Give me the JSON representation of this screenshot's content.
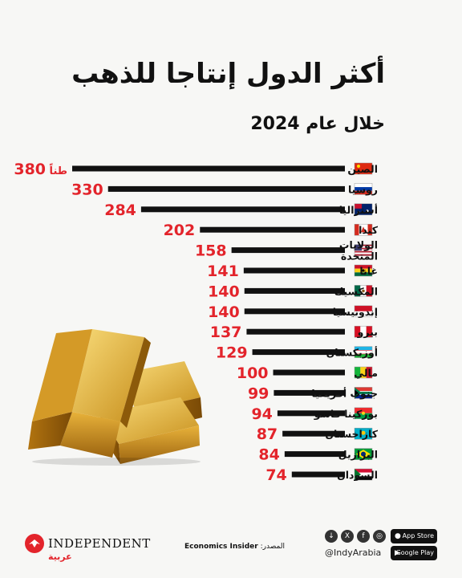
{
  "title": "أكثر الدول إنتاجا للذهب",
  "subtitle": "خلال عام 2024",
  "chart_data": {
    "type": "bar",
    "orientation": "horizontal",
    "value_unit_label": "طناً",
    "categories": [
      "الصين",
      "روسيا",
      "أستراليا",
      "كندا",
      "الولايات المتحدة",
      "غانا",
      "المكسيك",
      "إندونيسيا",
      "بيرو",
      "أوزبكستان",
      "مالي",
      "جنوب أفريقيا",
      "بوركينا فاسو",
      "كازاخستان",
      "البرازيل",
      "السودان"
    ],
    "values": [
      380,
      330,
      284,
      202,
      158,
      141,
      140,
      140,
      137,
      129,
      100,
      99,
      94,
      87,
      84,
      74
    ],
    "flags": [
      "china-flag",
      "russia-flag",
      "australia-flag",
      "canada-flag",
      "usa-flag",
      "ghana-flag",
      "mexico-flag",
      "indonesia-flag",
      "peru-flag",
      "uzbekistan-flag",
      "mali-flag",
      "south-africa-flag",
      "burkina-faso-flag",
      "kazakhstan-flag",
      "brazil-flag",
      "sudan-flag"
    ],
    "colors": {
      "bar": "#111111",
      "value": "#e3242b"
    }
  },
  "footer": {
    "brand": "INDEPENDENT",
    "brand_arabic": "عربية",
    "source_label": "المصدر:",
    "source": "Economics Insider",
    "handle": "@IndyArabia",
    "app_store": "App Store",
    "google_play": "Google Play",
    "social_icons": [
      "download-icon",
      "x-icon",
      "facebook-icon",
      "instagram-icon"
    ]
  }
}
